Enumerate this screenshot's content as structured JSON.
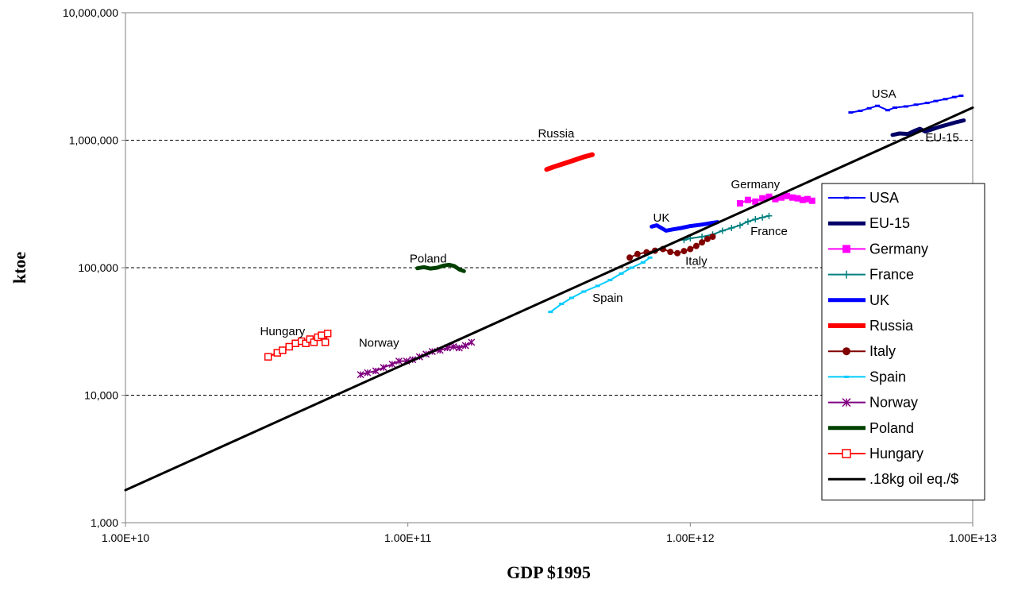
{
  "chart_data": {
    "type": "scatter",
    "title": "",
    "xlabel": "GDP $1995",
    "ylabel": "ktoe",
    "x_scale": "log",
    "y_scale": "log",
    "xlim": [
      10000000000.0,
      10000000000000.0
    ],
    "ylim": [
      1000,
      10000000
    ],
    "x_ticks": [
      "1.00E+10",
      "1.00E+11",
      "1.00E+12",
      "1.00E+13"
    ],
    "y_ticks": [
      "1,000",
      "10,000",
      "100,000",
      "1,000,000",
      "10,000,000"
    ],
    "grid": "horizontal dashed at 10,000 / 100,000 / 1,000,000",
    "legend_position": "right",
    "series": [
      {
        "name": "USA",
        "color": "#0000ff",
        "marker": "dash",
        "width": 2,
        "points": [
          [
            3700000000000.0,
            1650000
          ],
          [
            4000000000000.0,
            1700000
          ],
          [
            4300000000000.0,
            1780000
          ],
          [
            4600000000000.0,
            1860000
          ],
          [
            5000000000000.0,
            1720000
          ],
          [
            5300000000000.0,
            1800000
          ],
          [
            5800000000000.0,
            1840000
          ],
          [
            6300000000000.0,
            1900000
          ],
          [
            6900000000000.0,
            1960000
          ],
          [
            7400000000000.0,
            2030000
          ],
          [
            8000000000000.0,
            2100000
          ],
          [
            8600000000000.0,
            2180000
          ],
          [
            9100000000000.0,
            2230000
          ]
        ]
      },
      {
        "name": "EU-15",
        "color": "#000066",
        "marker": "none",
        "width": 5,
        "points": [
          [
            5200000000000.0,
            1100000
          ],
          [
            5500000000000.0,
            1130000
          ],
          [
            5900000000000.0,
            1120000
          ],
          [
            6200000000000.0,
            1180000
          ],
          [
            6500000000000.0,
            1230000
          ],
          [
            6800000000000.0,
            1170000
          ],
          [
            7200000000000.0,
            1220000
          ],
          [
            7700000000000.0,
            1280000
          ],
          [
            8200000000000.0,
            1330000
          ],
          [
            8700000000000.0,
            1380000
          ],
          [
            9300000000000.0,
            1430000
          ]
        ]
      },
      {
        "name": "Germany",
        "color": "#ff00ff",
        "marker": "square",
        "width": 2,
        "points": [
          [
            1500000000000.0,
            320000
          ],
          [
            1600000000000.0,
            340000
          ],
          [
            1700000000000.0,
            330000
          ],
          [
            1800000000000.0,
            350000
          ],
          [
            1900000000000.0,
            360000
          ],
          [
            2000000000000.0,
            345000
          ],
          [
            2100000000000.0,
            355000
          ],
          [
            2200000000000.0,
            365000
          ],
          [
            2300000000000.0,
            355000
          ],
          [
            2400000000000.0,
            350000
          ],
          [
            2500000000000.0,
            340000
          ],
          [
            2600000000000.0,
            345000
          ],
          [
            2700000000000.0,
            335000
          ]
        ]
      },
      {
        "name": "France",
        "color": "#008080",
        "marker": "plus",
        "width": 2,
        "points": [
          [
            950000000000.0,
            165000
          ],
          [
            1000000000000.0,
            170000
          ],
          [
            1100000000000.0,
            175000
          ],
          [
            1200000000000.0,
            182000
          ],
          [
            1300000000000.0,
            195000
          ],
          [
            1400000000000.0,
            205000
          ],
          [
            1500000000000.0,
            215000
          ],
          [
            1600000000000.0,
            230000
          ],
          [
            1700000000000.0,
            240000
          ],
          [
            1800000000000.0,
            248000
          ],
          [
            1900000000000.0,
            255000
          ]
        ]
      },
      {
        "name": "UK",
        "color": "#0000ff",
        "marker": "none",
        "width": 5,
        "points": [
          [
            730000000000.0,
            210000
          ],
          [
            760000000000.0,
            215000
          ],
          [
            790000000000.0,
            205000
          ],
          [
            820000000000.0,
            195000
          ],
          [
            870000000000.0,
            200000
          ],
          [
            930000000000.0,
            205000
          ],
          [
            1000000000000.0,
            212000
          ],
          [
            1100000000000.0,
            218000
          ],
          [
            1200000000000.0,
            225000
          ],
          [
            1250000000000.0,
            228000
          ]
        ]
      },
      {
        "name": "Russia",
        "color": "#ff0000",
        "marker": "none",
        "width": 6,
        "points": [
          [
            310000000000.0,
            590000
          ],
          [
            330000000000.0,
            620000
          ],
          [
            360000000000.0,
            660000
          ],
          [
            390000000000.0,
            700000
          ],
          [
            420000000000.0,
            740000
          ],
          [
            450000000000.0,
            770000
          ]
        ]
      },
      {
        "name": "Italy",
        "color": "#800000",
        "marker": "circle",
        "width": 2,
        "points": [
          [
            610000000000.0,
            120000
          ],
          [
            650000000000.0,
            128000
          ],
          [
            700000000000.0,
            132000
          ],
          [
            750000000000.0,
            136000
          ],
          [
            800000000000.0,
            140000
          ],
          [
            850000000000.0,
            133000
          ],
          [
            900000000000.0,
            130000
          ],
          [
            950000000000.0,
            135000
          ],
          [
            1000000000000.0,
            140000
          ],
          [
            1050000000000.0,
            148000
          ],
          [
            1100000000000.0,
            158000
          ],
          [
            1150000000000.0,
            168000
          ],
          [
            1200000000000.0,
            175000
          ]
        ]
      },
      {
        "name": "Spain",
        "color": "#00ccff",
        "marker": "dash",
        "width": 2,
        "points": [
          [
            320000000000.0,
            45000
          ],
          [
            350000000000.0,
            52000
          ],
          [
            380000000000.0,
            58000
          ],
          [
            420000000000.0,
            65000
          ],
          [
            470000000000.0,
            72000
          ],
          [
            520000000000.0,
            80000
          ],
          [
            570000000000.0,
            90000
          ],
          [
            620000000000.0,
            100000
          ],
          [
            680000000000.0,
            110000
          ],
          [
            720000000000.0,
            120000
          ]
        ]
      },
      {
        "name": "Norway",
        "color": "#800080",
        "marker": "star",
        "width": 2,
        "points": [
          [
            68000000000.0,
            14500
          ],
          [
            72000000000.0,
            15000
          ],
          [
            77000000000.0,
            15500
          ],
          [
            82000000000.0,
            16500
          ],
          [
            88000000000.0,
            17500
          ],
          [
            93000000000.0,
            18500
          ],
          [
            99000000000.0,
            18500
          ],
          [
            104000000000.0,
            19000
          ],
          [
            110000000000.0,
            20000
          ],
          [
            116000000000.0,
            21000
          ],
          [
            122000000000.0,
            22000
          ],
          [
            130000000000.0,
            22500
          ],
          [
            138000000000.0,
            23500
          ],
          [
            145000000000.0,
            24000
          ],
          [
            152000000000.0,
            23500
          ],
          [
            160000000000.0,
            24500
          ],
          [
            168000000000.0,
            26000
          ]
        ]
      },
      {
        "name": "Poland",
        "color": "#004000",
        "marker": "none",
        "width": 5,
        "points": [
          [
            108000000000.0,
            99000
          ],
          [
            114000000000.0,
            101000
          ],
          [
            120000000000.0,
            98500
          ],
          [
            127000000000.0,
            100000
          ],
          [
            134000000000.0,
            104000
          ],
          [
            140000000000.0,
            105500
          ],
          [
            146000000000.0,
            103000
          ],
          [
            152000000000.0,
            97000
          ],
          [
            158000000000.0,
            94000
          ]
        ]
      },
      {
        "name": "Hungary",
        "color": "#ff0000",
        "marker": "open-square",
        "width": 2,
        "points": [
          [
            32000000000.0,
            20000
          ],
          [
            34500000000.0,
            21500
          ],
          [
            36000000000.0,
            22500
          ],
          [
            38000000000.0,
            24000
          ],
          [
            40000000000.0,
            25500
          ],
          [
            42000000000.0,
            26500
          ],
          [
            43500000000.0,
            25500
          ],
          [
            45000000000.0,
            27500
          ],
          [
            46500000000.0,
            26000
          ],
          [
            48000000000.0,
            28500
          ],
          [
            49500000000.0,
            29500
          ],
          [
            51000000000.0,
            26000
          ],
          [
            52000000000.0,
            30500
          ]
        ]
      },
      {
        "name": ".18kg oil eq./$",
        "color": "#000000",
        "marker": "none",
        "width": 3,
        "points": [
          [
            10000000000.0,
            1800
          ],
          [
            10000000000000.0,
            1800000
          ]
        ]
      }
    ],
    "annotations": [
      {
        "text": "USA",
        "x": 4850000000000.0,
        "y": 2150000
      },
      {
        "text": "EU-15",
        "x": 7800000000000.0,
        "y": 980000
      },
      {
        "text": "Russia",
        "x": 335000000000.0,
        "y": 1050000
      },
      {
        "text": "Germany",
        "x": 1700000000000.0,
        "y": 420000
      },
      {
        "text": "UK",
        "x": 790000000000.0,
        "y": 230000
      },
      {
        "text": "France",
        "x": 1900000000000.0,
        "y": 180000
      },
      {
        "text": "Poland",
        "x": 118000000000.0,
        "y": 110000
      },
      {
        "text": "Italy",
        "x": 1050000000000.0,
        "y": 105000
      },
      {
        "text": "Spain",
        "x": 510000000000.0,
        "y": 54000
      },
      {
        "text": "Hungary",
        "x": 36000000000.0,
        "y": 29500
      },
      {
        "text": "Norway",
        "x": 79000000000.0,
        "y": 24000
      }
    ]
  }
}
